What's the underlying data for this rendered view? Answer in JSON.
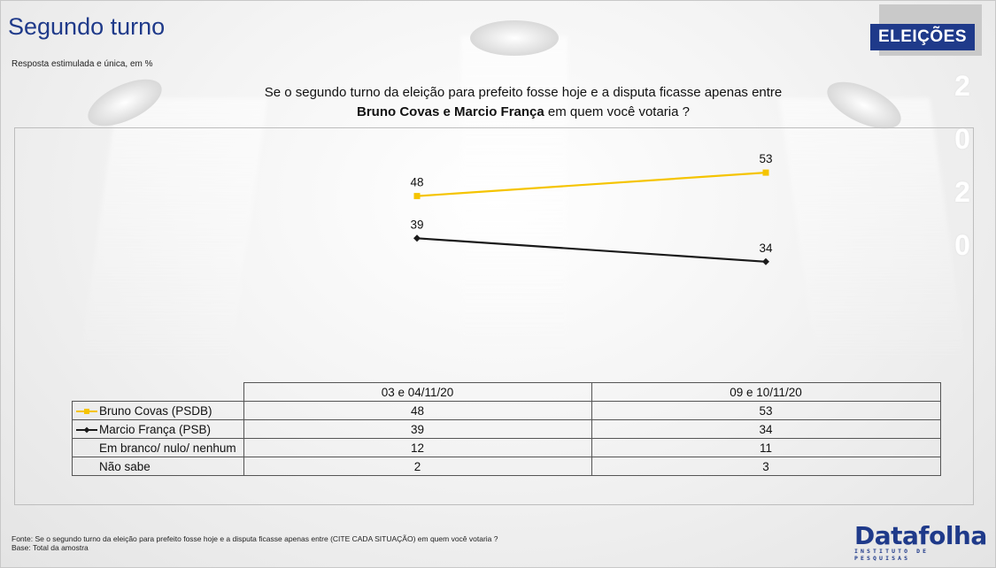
{
  "header": {
    "title": "Segundo turno",
    "subtitle": "Resposta estimulada e única, em %",
    "badge": "ELEIÇÕES",
    "year_digits": [
      "2",
      "0",
      "2",
      "0"
    ]
  },
  "question": {
    "line1": "Se o segundo turno da eleição para prefeito fosse hoje e a disputa ficasse apenas entre",
    "line2_bold": "Bruno Covas e Marcio França",
    "line2_rest": " em quem você votaria ?"
  },
  "chart_data": {
    "type": "line",
    "categories": [
      "03 e 04/11/20",
      "09 e 10/11/20"
    ],
    "ylim": [
      0,
      60
    ],
    "grid": false,
    "series": [
      {
        "name": "Bruno Covas (PSDB)",
        "values": [
          48,
          53
        ],
        "color": "#f5c400",
        "marker": "square"
      },
      {
        "name": "Marcio França (PSB)",
        "values": [
          39,
          34
        ],
        "color": "#1a1a1a",
        "marker": "diamond"
      }
    ],
    "table_rows": [
      {
        "label": "Bruno Covas (PSDB)",
        "values": [
          "48",
          "53"
        ],
        "key": "yellow"
      },
      {
        "label": "Marcio França (PSB)",
        "values": [
          "39",
          "34"
        ],
        "key": "black"
      },
      {
        "label": "Em branco/ nulo/ nenhum",
        "values": [
          "12",
          "11"
        ],
        "key": ""
      },
      {
        "label": "Não sabe",
        "values": [
          "2",
          "3"
        ],
        "key": ""
      }
    ]
  },
  "footer": {
    "source": "Fonte: Se o segundo turno da eleição para prefeito fosse hoje e a disputa ficasse apenas entre (CITE CADA SITUAÇÃO) em quem você votaria ?",
    "base": "Base: Total da amostra"
  },
  "logo": {
    "name": "Datafolha",
    "tagline": "INSTITUTO DE PESQUISAS"
  },
  "colors": {
    "brand_blue": "#1f3a8a",
    "yellow": "#f5c400",
    "black": "#1a1a1a"
  }
}
